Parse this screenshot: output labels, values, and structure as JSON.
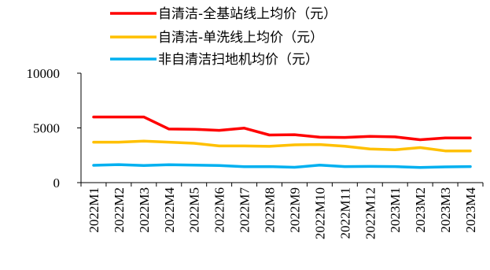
{
  "chart_data": {
    "type": "line",
    "title": "",
    "xlabel": "",
    "ylabel": "",
    "ylim": [
      0,
      10000
    ],
    "yticks": [
      0,
      5000,
      10000
    ],
    "grid": false,
    "legend_position": "top",
    "categories": [
      "2022M1",
      "2022M2",
      "2022M3",
      "2022M4",
      "2022M5",
      "2022M6",
      "2022M7",
      "2022M8",
      "2022M9",
      "2022M10",
      "2022M11",
      "2022M12",
      "2023M1",
      "2023M2",
      "2023M3",
      "2023M4"
    ],
    "series": [
      {
        "name": "自清洁-全基站线上均价（元）",
        "color": "#ff0000",
        "values": [
          6000,
          6000,
          6000,
          4900,
          4880,
          4780,
          4980,
          4350,
          4380,
          4150,
          4130,
          4230,
          4180,
          3920,
          4080,
          4080
        ]
      },
      {
        "name": "自清洁-单洗线上均价（元）",
        "color": "#ffc000",
        "values": [
          3700,
          3700,
          3800,
          3700,
          3600,
          3350,
          3350,
          3320,
          3450,
          3480,
          3330,
          3080,
          3000,
          3200,
          2900,
          2900
        ]
      },
      {
        "name": "非自清洁扫地机均价（元）",
        "color": "#00b0f0",
        "values": [
          1580,
          1650,
          1560,
          1630,
          1600,
          1560,
          1460,
          1470,
          1400,
          1600,
          1470,
          1480,
          1470,
          1380,
          1440,
          1470
        ]
      }
    ]
  }
}
